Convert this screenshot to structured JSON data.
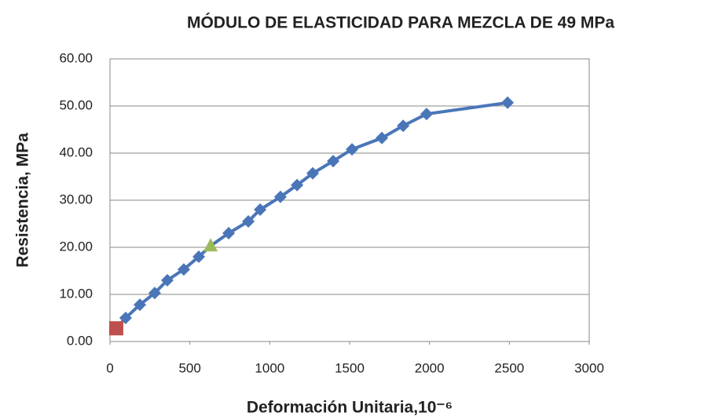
{
  "chart_data": {
    "type": "line",
    "title": "MÓDULO DE ELASTICIDAD PARA MEZCLA DE 49 MPa",
    "x_label": "Deformación  Unitaria,10⁻⁶",
    "y_label": "Resistencia, MPa",
    "series": [
      {
        "color": "#4a76b8",
        "x": [
          39,
          98,
          187,
          280,
          359,
          462,
          556,
          630,
          743,
          866,
          940,
          1067,
          1171,
          1269,
          1397,
          1515,
          1702,
          1835,
          1982,
          2489
        ],
        "values": [
          2.8,
          5.0,
          7.8,
          10.3,
          13.0,
          15.3,
          18.0,
          20.3,
          23.0,
          25.5,
          28.0,
          30.7,
          33.2,
          35.7,
          38.3,
          40.8,
          43.2,
          45.8,
          48.3,
          50.7
        ],
        "markers": [
          "square",
          "diamond",
          "diamond",
          "diamond",
          "diamond",
          "diamond",
          "diamond",
          "triangle",
          "diamond",
          "diamond",
          "diamond",
          "diamond",
          "diamond",
          "diamond",
          "diamond",
          "diamond",
          "diamond",
          "diamond",
          "diamond",
          "diamond"
        ],
        "marker_colors": [
          "#c0504d",
          "#4a76b8",
          "#4a76b8",
          "#4a76b8",
          "#4a76b8",
          "#4a76b8",
          "#4a76b8",
          "#9bbb59",
          "#4a76b8",
          "#4a76b8",
          "#4a76b8",
          "#4a76b8",
          "#4a76b8",
          "#4a76b8",
          "#4a76b8",
          "#4a76b8",
          "#4a76b8",
          "#4a76b8",
          "#4a76b8",
          "#4a76b8"
        ]
      }
    ],
    "xlim": [
      0,
      3000
    ],
    "xticks": [
      0,
      500,
      1000,
      1500,
      2000,
      2500,
      3000
    ],
    "ylim": [
      0,
      60
    ],
    "yticks": [
      {
        "value": 0,
        "label": "0.00"
      },
      {
        "value": 10,
        "label": "10.00"
      },
      {
        "value": 20,
        "label": "20.00"
      },
      {
        "value": 30,
        "label": "30.00"
      },
      {
        "value": 40,
        "label": "40.00"
      },
      {
        "value": 50,
        "label": "50.00"
      },
      {
        "value": 60,
        "label": "60.00"
      }
    ],
    "grid": true
  }
}
